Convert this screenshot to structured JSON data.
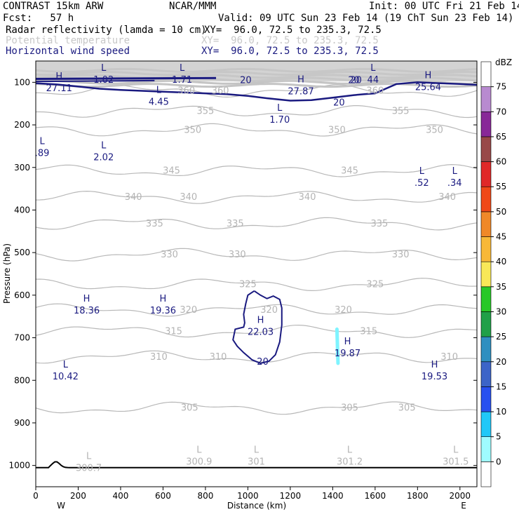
{
  "header": {
    "model": "CONTRAST 15km ARW",
    "center": "NCAR/MMM",
    "init": "Init: 00 UTC Fri 21 Feb 14",
    "fcst": "Fcst:   57 h",
    "valid": "Valid: 09 UTC Sun 23 Feb 14 (19 ChT Sun 23 Feb 14)",
    "fields": [
      {
        "name": "Radar reflectivity (lamda = 10 cm)",
        "xy": "XY=  96.0, 72.5 to 235.3, 72.5"
      },
      {
        "name": "Potential temperature",
        "xy": "XY=  96.0, 72.5 to 235.3, 72.5"
      },
      {
        "name": "Horizontal wind speed",
        "xy": "XY=  96.0, 72.5 to 235.3, 72.5"
      }
    ]
  },
  "chart_data": {
    "type": "cross-section contour",
    "title": "CONTRAST 15km ARW",
    "xlabel": "Distance (km)",
    "ylabel": "Pressure (hPa)",
    "xlim": [
      0,
      2080
    ],
    "ylim": [
      1050,
      50
    ],
    "x_ticks": [
      0,
      200,
      400,
      600,
      800,
      1000,
      1200,
      1400,
      1600,
      1800,
      2000
    ],
    "y_ticks": [
      100,
      200,
      300,
      400,
      500,
      600,
      700,
      800,
      900,
      1000
    ],
    "x_end_labels": {
      "left": "W",
      "right": "E"
    },
    "theta_contours": [
      {
        "value": 305,
        "p": 865,
        "labels": [
          [
            725,
            305
          ],
          [
            1480,
            305
          ],
          [
            1750,
            305
          ]
        ]
      },
      {
        "value": 310,
        "p": 745,
        "labels": [
          [
            580,
            310
          ],
          [
            860,
            310
          ],
          [
            1950,
            310
          ]
        ]
      },
      {
        "value": 315,
        "p": 685,
        "labels": [
          [
            650,
            315
          ],
          [
            1570,
            315
          ]
        ]
      },
      {
        "value": 320,
        "p": 635,
        "labels": [
          [
            720,
            320
          ],
          [
            1100,
            320
          ],
          [
            1450,
            320
          ]
        ]
      },
      {
        "value": 325,
        "p": 575,
        "labels": [
          [
            1000,
            325
          ],
          [
            1600,
            325
          ]
        ]
      },
      {
        "value": 330,
        "p": 505,
        "labels": [
          [
            630,
            330
          ],
          [
            950,
            330
          ],
          [
            1720,
            330
          ]
        ]
      },
      {
        "value": 335,
        "p": 432,
        "labels": [
          [
            560,
            335
          ],
          [
            940,
            335
          ],
          [
            1620,
            335
          ]
        ]
      },
      {
        "value": 340,
        "p": 370,
        "labels": [
          [
            460,
            340
          ],
          [
            720,
            340
          ],
          [
            1280,
            340
          ],
          [
            1940,
            340
          ]
        ]
      },
      {
        "value": 345,
        "p": 308,
        "labels": [
          [
            640,
            345
          ],
          [
            1480,
            345
          ]
        ]
      },
      {
        "value": 350,
        "p": 212,
        "labels": [
          [
            740,
            350
          ],
          [
            1420,
            350
          ],
          [
            1880,
            350
          ]
        ]
      },
      {
        "value": 355,
        "p": 168,
        "labels": [
          [
            800,
            355
          ],
          [
            1720,
            355
          ]
        ]
      },
      {
        "value": 360,
        "p": 120,
        "labels": [
          [
            710,
            360
          ],
          [
            870,
            360
          ],
          [
            1600,
            360
          ]
        ]
      }
    ],
    "wind_speed_contour": {
      "value": 20,
      "labels": [
        [
          990,
          20
        ],
        [
          1510,
          20
        ],
        [
          1430,
          20
        ],
        [
          1500,
          20
        ]
      ]
    },
    "closed_contour_label": {
      "value": 20,
      "label_at": [
        1070,
        755
      ]
    },
    "extrema": [
      {
        "type": "H",
        "label": "27.11",
        "x": 110,
        "p": 108
      },
      {
        "type": "L",
        "label": "1.02",
        "x": 320,
        "p": 88
      },
      {
        "type": "L",
        "label": "1.71",
        "x": 690,
        "p": 88
      },
      {
        "type": "H",
        "label": "27.87",
        "x": 1250,
        "p": 115
      },
      {
        "type": "L",
        "label": "44",
        "x": 1590,
        "p": 88
      },
      {
        "type": "H",
        "label": "25.64",
        "x": 1850,
        "p": 105
      },
      {
        "type": "L",
        "label": "4.45",
        "x": 580,
        "p": 140
      },
      {
        "type": "L",
        "label": "1.70",
        "x": 1150,
        "p": 182
      },
      {
        "type": "L",
        "label": ".89",
        "x": 30,
        "p": 260
      },
      {
        "type": "L",
        "label": "2.02",
        "x": 320,
        "p": 270
      },
      {
        "type": "L",
        "label": ".52",
        "x": 1820,
        "p": 330
      },
      {
        "type": "L",
        "label": ".34",
        "x": 1975,
        "p": 330
      },
      {
        "type": "H",
        "label": "18.36",
        "x": 240,
        "p": 630
      },
      {
        "type": "H",
        "label": "19.36",
        "x": 600,
        "p": 630
      },
      {
        "type": "H",
        "label": "22.03",
        "x": 1060,
        "p": 680
      },
      {
        "type": "H",
        "label": "19.87",
        "x": 1470,
        "p": 730
      },
      {
        "type": "L",
        "label": "10.42",
        "x": 140,
        "p": 785
      },
      {
        "type": "H",
        "label": "19.53",
        "x": 1880,
        "p": 785
      },
      {
        "type": "L",
        "label": "300.7",
        "x": 250,
        "p": 1000,
        "gray": true
      },
      {
        "type": "L",
        "label": "300.9",
        "x": 770,
        "p": 985,
        "gray": true
      },
      {
        "type": "L",
        "label": "301",
        "x": 1040,
        "p": 985,
        "gray": true
      },
      {
        "type": "L",
        "label": "301.2",
        "x": 1480,
        "p": 985,
        "gray": true
      },
      {
        "type": "L",
        "label": "301.5",
        "x": 1980,
        "p": 985,
        "gray": true
      }
    ],
    "colorbar": {
      "unit": "dBZ",
      "levels": [
        0,
        5,
        10,
        15,
        20,
        25,
        30,
        35,
        40,
        45,
        50,
        55,
        60,
        65,
        70,
        75
      ],
      "colors": [
        "#ffffff",
        "#9ffbff",
        "#20c8f8",
        "#2850f0",
        "#3c64c8",
        "#2f8fc0",
        "#20a048",
        "#28c828",
        "#f8e858",
        "#f8b838",
        "#f08828",
        "#f04818",
        "#e02828",
        "#984848",
        "#882898",
        "#b88ad0",
        "#ffffff"
      ]
    }
  }
}
